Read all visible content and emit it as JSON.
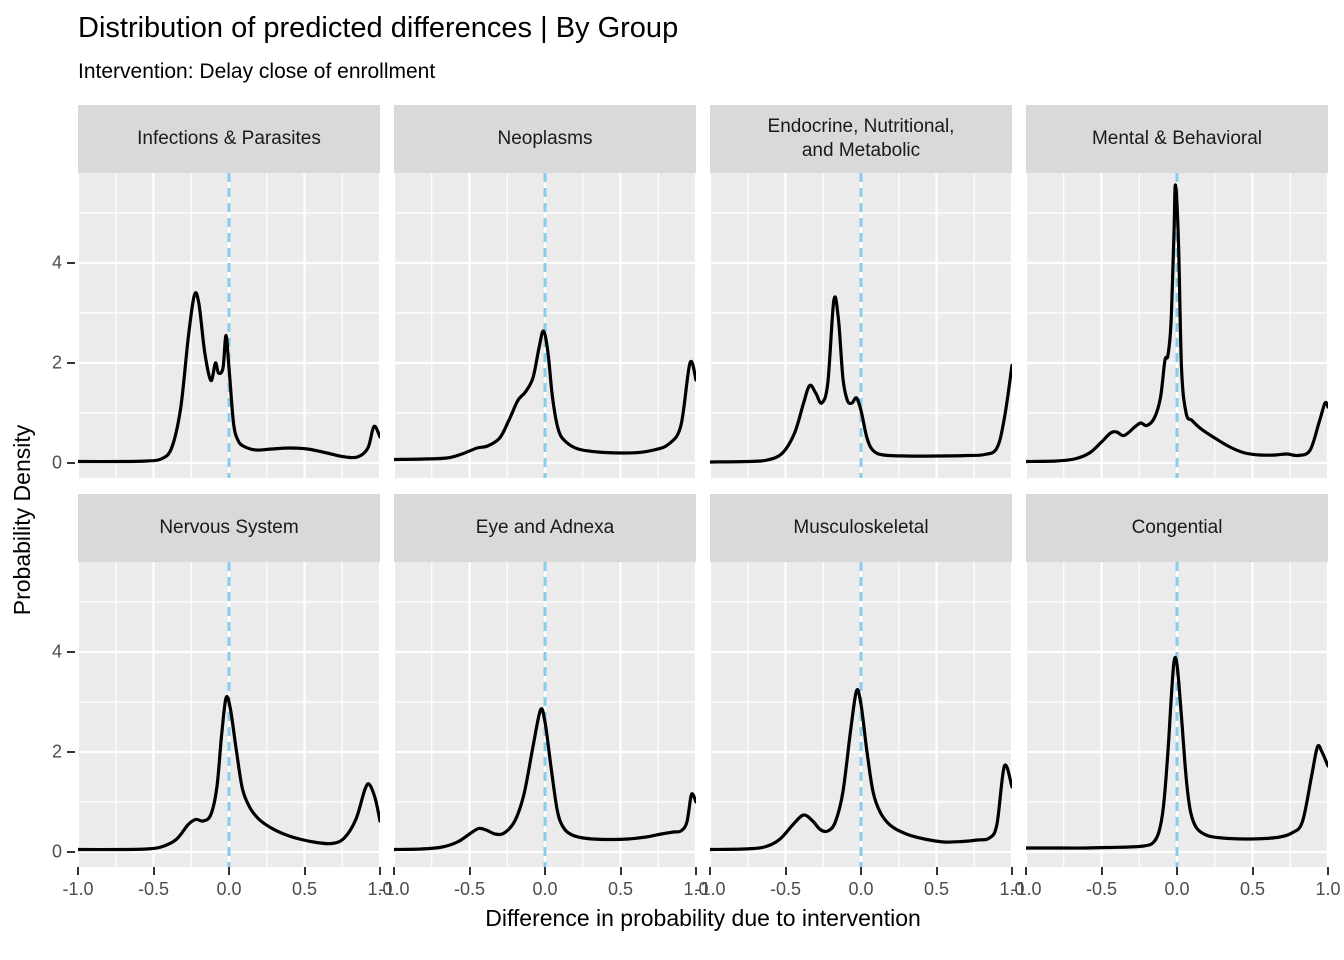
{
  "header": {
    "title": "Distribution of predicted differences | By Group",
    "subtitle": "Intervention: Delay close of enrollment"
  },
  "chart_data": {
    "type": "line",
    "subtype": "faceted-density",
    "title": "Distribution of predicted differences | By Group",
    "subtitle": "Intervention: Delay close of enrollment",
    "xlabel": "Difference in probability due to intervention",
    "ylabel": "Probability Density",
    "xlim": [
      -1.0,
      1.0
    ],
    "ylim": [
      -0.3,
      5.8
    ],
    "x_tick_labels": [
      "-1.0",
      "-0.5",
      "0.0",
      "0.5",
      "1.0"
    ],
    "x_tick_values": [
      -1.0,
      -0.5,
      0.0,
      0.5,
      1.0
    ],
    "x_minor_values": [
      -0.75,
      -0.25,
      0.25,
      0.75
    ],
    "y_tick_labels": [
      "0",
      "2",
      "4"
    ],
    "y_tick_values": [
      0,
      2,
      4
    ],
    "y_minor_values": [
      1,
      3,
      5
    ],
    "grid": "on",
    "legend": "none",
    "facet_layout": {
      "rows": 2,
      "cols": 4
    },
    "reference_line": {
      "x": 0.0,
      "style": "dashed",
      "color": "#87CEEB"
    },
    "colors": {
      "curve": "#000000",
      "panel_background": "#EBEBEB",
      "strip_background": "#D9D9D9",
      "gridline": "#FFFFFF",
      "tick_text": "#4D4D4D",
      "tick_mark": "#333333",
      "text": "#000000"
    },
    "facets": [
      {
        "label": "Infections & Parasites",
        "points": [
          [
            -1.0,
            0.03
          ],
          [
            -0.7,
            0.03
          ],
          [
            -0.55,
            0.04
          ],
          [
            -0.45,
            0.08
          ],
          [
            -0.38,
            0.3
          ],
          [
            -0.32,
            1.1
          ],
          [
            -0.27,
            2.5
          ],
          [
            -0.23,
            3.35
          ],
          [
            -0.2,
            3.2
          ],
          [
            -0.16,
            2.2
          ],
          [
            -0.12,
            1.65
          ],
          [
            -0.09,
            2.0
          ],
          [
            -0.07,
            1.8
          ],
          [
            -0.04,
            1.9
          ],
          [
            -0.02,
            2.55
          ],
          [
            0.0,
            1.9
          ],
          [
            0.03,
            0.8
          ],
          [
            0.06,
            0.45
          ],
          [
            0.1,
            0.33
          ],
          [
            0.18,
            0.26
          ],
          [
            0.28,
            0.28
          ],
          [
            0.4,
            0.3
          ],
          [
            0.52,
            0.28
          ],
          [
            0.65,
            0.2
          ],
          [
            0.75,
            0.13
          ],
          [
            0.85,
            0.12
          ],
          [
            0.92,
            0.3
          ],
          [
            0.96,
            0.73
          ],
          [
            1.0,
            0.52
          ]
        ]
      },
      {
        "label": "Neoplasms",
        "points": [
          [
            -1.0,
            0.07
          ],
          [
            -0.8,
            0.08
          ],
          [
            -0.65,
            0.1
          ],
          [
            -0.55,
            0.18
          ],
          [
            -0.45,
            0.3
          ],
          [
            -0.38,
            0.34
          ],
          [
            -0.3,
            0.5
          ],
          [
            -0.24,
            0.85
          ],
          [
            -0.18,
            1.25
          ],
          [
            -0.13,
            1.42
          ],
          [
            -0.08,
            1.7
          ],
          [
            -0.04,
            2.3
          ],
          [
            -0.01,
            2.64
          ],
          [
            0.02,
            2.2
          ],
          [
            0.05,
            1.3
          ],
          [
            0.09,
            0.65
          ],
          [
            0.14,
            0.42
          ],
          [
            0.22,
            0.28
          ],
          [
            0.35,
            0.22
          ],
          [
            0.5,
            0.2
          ],
          [
            0.62,
            0.21
          ],
          [
            0.72,
            0.26
          ],
          [
            0.82,
            0.38
          ],
          [
            0.9,
            0.75
          ],
          [
            0.96,
            2.0
          ],
          [
            1.0,
            1.66
          ]
        ]
      },
      {
        "label": "Endocrine, Nutritional,\nand Metabolic",
        "points": [
          [
            -1.0,
            0.02
          ],
          [
            -0.75,
            0.03
          ],
          [
            -0.62,
            0.06
          ],
          [
            -0.52,
            0.2
          ],
          [
            -0.44,
            0.6
          ],
          [
            -0.38,
            1.2
          ],
          [
            -0.34,
            1.55
          ],
          [
            -0.3,
            1.4
          ],
          [
            -0.26,
            1.2
          ],
          [
            -0.22,
            1.6
          ],
          [
            -0.18,
            3.25
          ],
          [
            -0.15,
            2.9
          ],
          [
            -0.12,
            1.7
          ],
          [
            -0.09,
            1.25
          ],
          [
            -0.06,
            1.2
          ],
          [
            -0.03,
            1.3
          ],
          [
            0.0,
            1.05
          ],
          [
            0.04,
            0.5
          ],
          [
            0.08,
            0.25
          ],
          [
            0.15,
            0.16
          ],
          [
            0.3,
            0.14
          ],
          [
            0.5,
            0.14
          ],
          [
            0.7,
            0.15
          ],
          [
            0.82,
            0.17
          ],
          [
            0.9,
            0.3
          ],
          [
            0.95,
            0.9
          ],
          [
            1.0,
            1.95
          ]
        ]
      },
      {
        "label": "Mental & Behavioral",
        "points": [
          [
            -1.0,
            0.03
          ],
          [
            -0.8,
            0.04
          ],
          [
            -0.68,
            0.08
          ],
          [
            -0.58,
            0.2
          ],
          [
            -0.5,
            0.42
          ],
          [
            -0.44,
            0.6
          ],
          [
            -0.4,
            0.62
          ],
          [
            -0.35,
            0.55
          ],
          [
            -0.28,
            0.72
          ],
          [
            -0.24,
            0.8
          ],
          [
            -0.2,
            0.75
          ],
          [
            -0.15,
            0.9
          ],
          [
            -0.11,
            1.3
          ],
          [
            -0.08,
            2.05
          ],
          [
            -0.06,
            2.15
          ],
          [
            -0.04,
            2.8
          ],
          [
            -0.02,
            4.6
          ],
          [
            -0.01,
            5.56
          ],
          [
            0.01,
            4.4
          ],
          [
            0.03,
            1.9
          ],
          [
            0.06,
            1.0
          ],
          [
            0.1,
            0.85
          ],
          [
            0.16,
            0.68
          ],
          [
            0.25,
            0.5
          ],
          [
            0.35,
            0.32
          ],
          [
            0.45,
            0.2
          ],
          [
            0.55,
            0.16
          ],
          [
            0.65,
            0.16
          ],
          [
            0.73,
            0.18
          ],
          [
            0.8,
            0.15
          ],
          [
            0.88,
            0.25
          ],
          [
            0.94,
            0.8
          ],
          [
            0.98,
            1.2
          ],
          [
            1.0,
            1.12
          ]
        ]
      },
      {
        "label": "Nervous System",
        "points": [
          [
            -1.0,
            0.05
          ],
          [
            -0.7,
            0.05
          ],
          [
            -0.55,
            0.06
          ],
          [
            -0.45,
            0.1
          ],
          [
            -0.35,
            0.25
          ],
          [
            -0.27,
            0.55
          ],
          [
            -0.22,
            0.65
          ],
          [
            -0.17,
            0.62
          ],
          [
            -0.12,
            0.75
          ],
          [
            -0.08,
            1.3
          ],
          [
            -0.05,
            2.3
          ],
          [
            -0.02,
            3.08
          ],
          [
            0.01,
            2.85
          ],
          [
            0.05,
            2.0
          ],
          [
            0.09,
            1.25
          ],
          [
            0.14,
            0.88
          ],
          [
            0.2,
            0.65
          ],
          [
            0.28,
            0.48
          ],
          [
            0.38,
            0.34
          ],
          [
            0.48,
            0.25
          ],
          [
            0.58,
            0.19
          ],
          [
            0.68,
            0.17
          ],
          [
            0.76,
            0.27
          ],
          [
            0.84,
            0.65
          ],
          [
            0.9,
            1.25
          ],
          [
            0.93,
            1.35
          ],
          [
            0.97,
            1.05
          ],
          [
            1.0,
            0.62
          ]
        ]
      },
      {
        "label": "Eye and Adnexa",
        "points": [
          [
            -1.0,
            0.05
          ],
          [
            -0.82,
            0.06
          ],
          [
            -0.68,
            0.1
          ],
          [
            -0.58,
            0.2
          ],
          [
            -0.5,
            0.36
          ],
          [
            -0.44,
            0.47
          ],
          [
            -0.39,
            0.44
          ],
          [
            -0.33,
            0.36
          ],
          [
            -0.27,
            0.38
          ],
          [
            -0.2,
            0.62
          ],
          [
            -0.14,
            1.15
          ],
          [
            -0.08,
            2.1
          ],
          [
            -0.03,
            2.84
          ],
          [
            0.0,
            2.6
          ],
          [
            0.04,
            1.7
          ],
          [
            0.08,
            0.85
          ],
          [
            0.12,
            0.5
          ],
          [
            0.18,
            0.34
          ],
          [
            0.28,
            0.27
          ],
          [
            0.42,
            0.25
          ],
          [
            0.55,
            0.26
          ],
          [
            0.67,
            0.3
          ],
          [
            0.77,
            0.36
          ],
          [
            0.85,
            0.4
          ],
          [
            0.9,
            0.42
          ],
          [
            0.94,
            0.6
          ],
          [
            0.97,
            1.15
          ],
          [
            1.0,
            1.0
          ]
        ]
      },
      {
        "label": "Musculoskeletal",
        "points": [
          [
            -1.0,
            0.05
          ],
          [
            -0.78,
            0.06
          ],
          [
            -0.64,
            0.1
          ],
          [
            -0.54,
            0.25
          ],
          [
            -0.45,
            0.55
          ],
          [
            -0.38,
            0.74
          ],
          [
            -0.32,
            0.62
          ],
          [
            -0.27,
            0.45
          ],
          [
            -0.22,
            0.42
          ],
          [
            -0.17,
            0.6
          ],
          [
            -0.12,
            1.2
          ],
          [
            -0.07,
            2.4
          ],
          [
            -0.03,
            3.22
          ],
          [
            0.0,
            2.95
          ],
          [
            0.04,
            2.0
          ],
          [
            0.08,
            1.2
          ],
          [
            0.13,
            0.78
          ],
          [
            0.2,
            0.52
          ],
          [
            0.3,
            0.36
          ],
          [
            0.42,
            0.26
          ],
          [
            0.55,
            0.2
          ],
          [
            0.67,
            0.21
          ],
          [
            0.77,
            0.24
          ],
          [
            0.85,
            0.28
          ],
          [
            0.9,
            0.55
          ],
          [
            0.95,
            1.72
          ],
          [
            1.0,
            1.3
          ]
        ]
      },
      {
        "label": "Congential",
        "points": [
          [
            -1.0,
            0.08
          ],
          [
            -0.8,
            0.08
          ],
          [
            -0.6,
            0.08
          ],
          [
            -0.45,
            0.09
          ],
          [
            -0.32,
            0.1
          ],
          [
            -0.22,
            0.12
          ],
          [
            -0.16,
            0.18
          ],
          [
            -0.12,
            0.4
          ],
          [
            -0.09,
            0.9
          ],
          [
            -0.06,
            2.0
          ],
          [
            -0.04,
            3.0
          ],
          [
            -0.02,
            3.8
          ],
          [
            0.0,
            3.75
          ],
          [
            0.03,
            2.7
          ],
          [
            0.06,
            1.5
          ],
          [
            0.09,
            0.8
          ],
          [
            0.13,
            0.48
          ],
          [
            0.2,
            0.33
          ],
          [
            0.3,
            0.28
          ],
          [
            0.45,
            0.26
          ],
          [
            0.58,
            0.27
          ],
          [
            0.68,
            0.3
          ],
          [
            0.76,
            0.38
          ],
          [
            0.83,
            0.6
          ],
          [
            0.89,
            1.5
          ],
          [
            0.93,
            2.1
          ],
          [
            0.96,
            2.0
          ],
          [
            1.0,
            1.72
          ]
        ]
      }
    ]
  }
}
